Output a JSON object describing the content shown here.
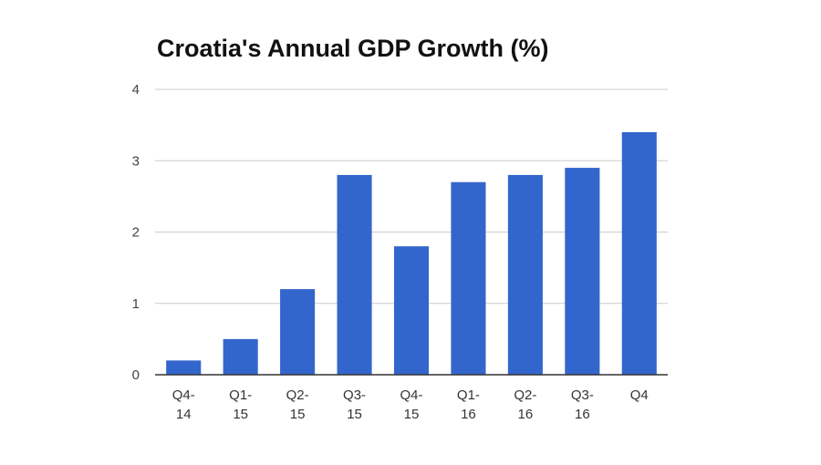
{
  "chart_data": {
    "type": "bar",
    "title": "Croatia's Annual GDP Growth (%)",
    "xlabel": "",
    "ylabel": "",
    "categories": [
      [
        "Q4-",
        "14"
      ],
      [
        "Q1-",
        "15"
      ],
      [
        "Q2-",
        "15"
      ],
      [
        "Q3-",
        "15"
      ],
      [
        "Q4-",
        "15"
      ],
      [
        "Q1-",
        "16"
      ],
      [
        "Q2-",
        "16"
      ],
      [
        "Q3-",
        "16"
      ],
      [
        "Q4"
      ]
    ],
    "values": [
      0.2,
      0.5,
      1.2,
      2.8,
      1.8,
      2.7,
      2.8,
      2.9,
      3.4
    ],
    "ylim": [
      0,
      4
    ],
    "yticks": [
      "0",
      "1",
      "2",
      "3",
      "4"
    ],
    "grid": true,
    "legend": "none",
    "bar_color": "#3366cc",
    "grid_color": "#cccccc",
    "axis_color": "#333333"
  }
}
